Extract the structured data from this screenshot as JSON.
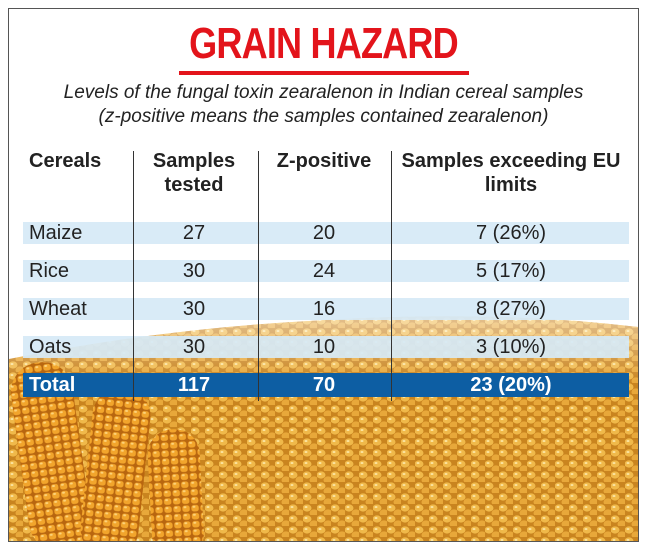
{
  "title": "GRAIN HAZARD",
  "subtitle": [
    "Levels of the fungal toxin zearalenon in Indian cereal samples",
    "(z-positive means the samples contained zearalenon)"
  ],
  "table": {
    "header": [
      "Cereals",
      "Samples tested",
      "Z-positive",
      "Samples exceeding EU limits"
    ],
    "rows": [
      [
        "Maize",
        27,
        20,
        "7 (26%)"
      ],
      [
        "Rice",
        30,
        24,
        "5 (17%)"
      ],
      [
        "Wheat",
        30,
        16,
        "8 (27%)"
      ],
      [
        "Oats",
        30,
        10,
        "3 (10%)"
      ]
    ],
    "total": [
      "Total",
      117,
      70,
      "23 (20%)"
    ]
  }
}
